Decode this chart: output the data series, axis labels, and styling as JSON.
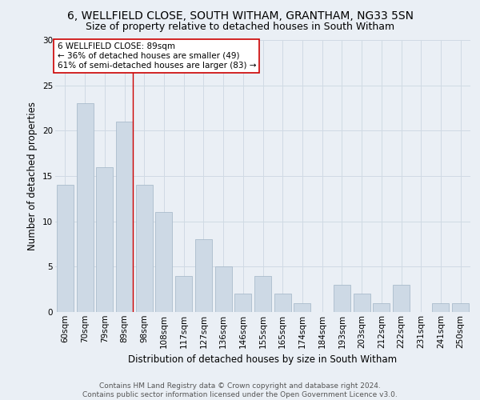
{
  "title": "6, WELLFIELD CLOSE, SOUTH WITHAM, GRANTHAM, NG33 5SN",
  "subtitle": "Size of property relative to detached houses in South Witham",
  "xlabel": "Distribution of detached houses by size in South Witham",
  "ylabel": "Number of detached properties",
  "categories": [
    "60sqm",
    "70sqm",
    "79sqm",
    "89sqm",
    "98sqm",
    "108sqm",
    "117sqm",
    "127sqm",
    "136sqm",
    "146sqm",
    "155sqm",
    "165sqm",
    "174sqm",
    "184sqm",
    "193sqm",
    "203sqm",
    "212sqm",
    "222sqm",
    "231sqm",
    "241sqm",
    "250sqm"
  ],
  "values": [
    14,
    23,
    16,
    21,
    14,
    11,
    4,
    8,
    5,
    2,
    4,
    2,
    1,
    0,
    3,
    2,
    1,
    3,
    0,
    1,
    1
  ],
  "bar_color": "#cdd9e5",
  "bar_edge_color": "#aabccc",
  "highlight_index": 3,
  "highlight_line_color": "#cc0000",
  "annotation_box_text": "6 WELLFIELD CLOSE: 89sqm\n← 36% of detached houses are smaller (49)\n61% of semi-detached houses are larger (83) →",
  "annotation_box_color": "#ffffff",
  "annotation_box_edge_color": "#cc0000",
  "ylim": [
    0,
    30
  ],
  "yticks": [
    0,
    5,
    10,
    15,
    20,
    25,
    30
  ],
  "grid_color": "#d0dae4",
  "background_color": "#eaeff5",
  "footer": "Contains HM Land Registry data © Crown copyright and database right 2024.\nContains public sector information licensed under the Open Government Licence v3.0.",
  "title_fontsize": 10,
  "subtitle_fontsize": 9,
  "xlabel_fontsize": 8.5,
  "ylabel_fontsize": 8.5,
  "tick_fontsize": 7.5,
  "annotation_fontsize": 7.5,
  "footer_fontsize": 6.5
}
